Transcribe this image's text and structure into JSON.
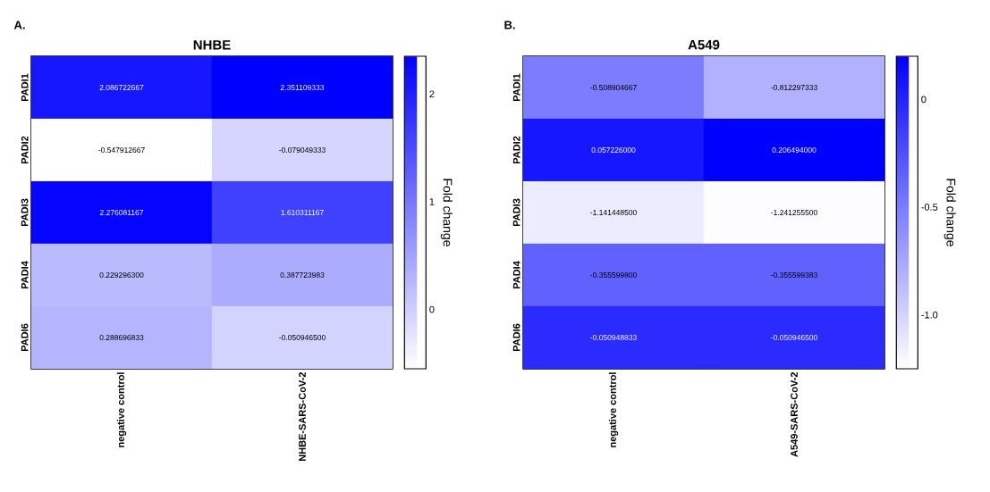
{
  "chart_data": [
    {
      "type": "heatmap",
      "title": "NHBE",
      "annotations": [
        "A."
      ],
      "categories": [
        "negative control",
        "NHBE-SARS-CoV-2"
      ],
      "y_categories": [
        "PADI1",
        "PADI2",
        "PADI3",
        "PADI4",
        "PADI6"
      ],
      "cells": [
        [
          2.086722667,
          2.351109333
        ],
        [
          -0.547912667,
          -0.079049333
        ],
        [
          2.276081167,
          1.610311167
        ],
        [
          0.2292963,
          0.387723983
        ],
        [
          0.288696833,
          -0.0509465
        ]
      ],
      "cell_labels": [
        [
          "2.086722667",
          "2.351109333"
        ],
        [
          "-0.547912667",
          "-0.079049333"
        ],
        [
          "2.276081167",
          "1.610311167"
        ],
        [
          "0.229296300",
          "0.387723983"
        ],
        [
          "0.288696833",
          "-0.050946500"
        ]
      ],
      "clim": [
        -0.55,
        2.35
      ],
      "cticks": [
        0,
        1,
        2
      ],
      "clabel": "Fold change"
    },
    {
      "type": "heatmap",
      "title": "A549",
      "annotations": [
        "B."
      ],
      "categories": [
        "negative control",
        "A549-SARS-CoV-2"
      ],
      "y_categories": [
        "PADI1",
        "PADI2",
        "PADI3",
        "PADI4",
        "PADI6"
      ],
      "cells": [
        [
          -0.508904667,
          -0.812297333
        ],
        [
          0.057226,
          0.206494
        ],
        [
          -1.1414485,
          -1.2412555
        ],
        [
          -0.3555998,
          -0.355599383
        ],
        [
          -0.050948833,
          -0.0509465
        ]
      ],
      "cell_labels": [
        [
          "-0.508904667",
          "-0.812297333"
        ],
        [
          "0.057226000",
          "0.206494000"
        ],
        [
          "-1.141448500",
          "-1.241255500"
        ],
        [
          "-0.355599800",
          "-0.355599383"
        ],
        [
          "-0.050948833",
          "-0.050946500"
        ]
      ],
      "clim": [
        -1.25,
        0.2
      ],
      "cticks": [
        {
          "value": -1,
          "label": "-1.0"
        },
        -0.5,
        0
      ],
      "clabel": "Fold change"
    }
  ]
}
